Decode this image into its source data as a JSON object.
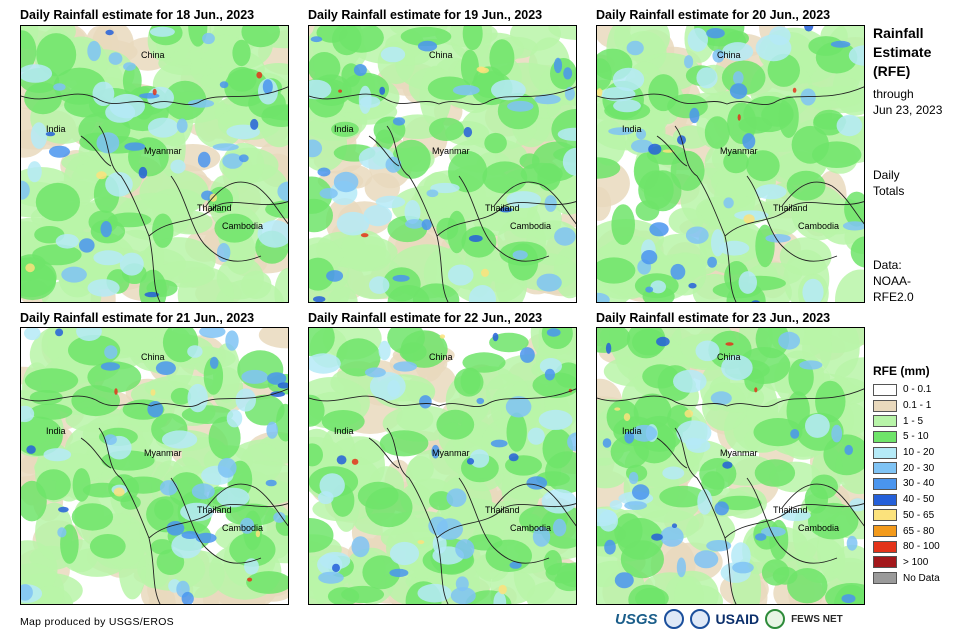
{
  "panels": [
    {
      "title": "Daily Rainfall estimate for 18 Jun., 2023"
    },
    {
      "title": "Daily Rainfall estimate for 19 Jun., 2023"
    },
    {
      "title": "Daily Rainfall estimate for 20 Jun., 2023"
    },
    {
      "title": "Daily Rainfall estimate for 21 Jun., 2023"
    },
    {
      "title": "Daily Rainfall estimate for 22 Jun., 2023"
    },
    {
      "title": "Daily Rainfall estimate for 23 Jun., 2023"
    }
  ],
  "map_labels": {
    "china": "China",
    "india": "India",
    "myanmar": "Myanmar",
    "thailand": "Thailand",
    "cambodia": "Cambodia"
  },
  "sidebar": {
    "title_line1": "Rainfall",
    "title_line2": "Estimate",
    "title_line3": "(RFE)",
    "through_line1": "through",
    "through_line2": "Jun 23, 2023",
    "daily_line1": "Daily",
    "daily_line2": "Totals",
    "data_line1": "Data:",
    "data_line2": "NOAA-",
    "data_line3": "RFE2.0"
  },
  "legend": {
    "title": "RFE (mm)",
    "items": [
      {
        "label": "0 - 0.1",
        "color": "#ffffff"
      },
      {
        "label": "0.1 - 1",
        "color": "#e9d9bd"
      },
      {
        "label": "1 - 5",
        "color": "#b8f4a8"
      },
      {
        "label": "5 - 10",
        "color": "#6fe46a"
      },
      {
        "label": "10 - 20",
        "color": "#b5eaf7"
      },
      {
        "label": "20 - 30",
        "color": "#7fc3f4"
      },
      {
        "label": "30 - 40",
        "color": "#4a95ee"
      },
      {
        "label": "40 - 50",
        "color": "#2560d9"
      },
      {
        "label": "50 - 65",
        "color": "#fbe27c"
      },
      {
        "label": "65 - 80",
        "color": "#f39a1b"
      },
      {
        "label": "80 - 100",
        "color": "#e3331a"
      },
      {
        "label": "> 100",
        "color": "#a3171b"
      },
      {
        "label": "No Data",
        "color": "#9a9a9a"
      }
    ]
  },
  "credit": "Map produced by USGS/EROS",
  "logos": {
    "usgs": "USGS",
    "usaid": "USAID",
    "fews": "FEWS NET"
  }
}
